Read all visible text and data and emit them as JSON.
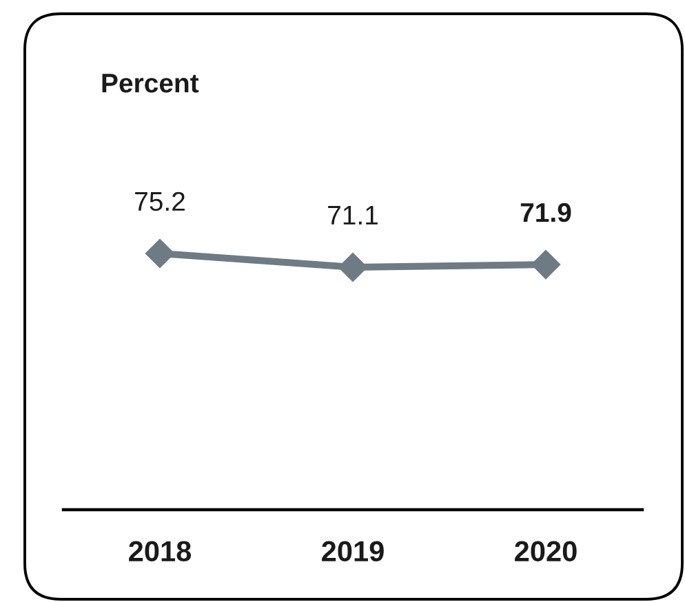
{
  "chart_data": {
    "type": "line",
    "annotations": [
      "Percent"
    ],
    "categories": [
      "2018",
      "2019",
      "2020"
    ],
    "series": [
      {
        "color": "#6e7b85",
        "values": [
          75.2,
          71.1,
          71.9
        ]
      }
    ],
    "tick_labels": "x",
    "data_labels": true,
    "marker": "diamond",
    "line_style": "solid"
  }
}
